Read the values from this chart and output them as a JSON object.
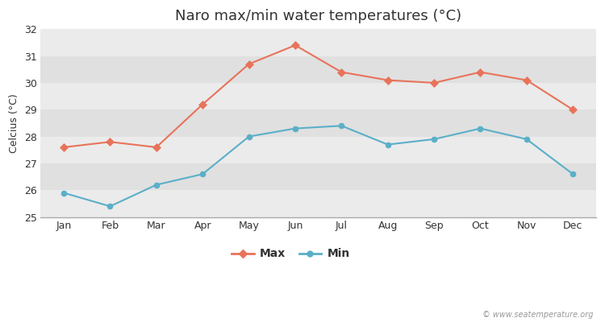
{
  "title": "Naro max/min water temperatures (°C)",
  "ylabel": "Celcius (°C)",
  "months": [
    "Jan",
    "Feb",
    "Mar",
    "Apr",
    "May",
    "Jun",
    "Jul",
    "Aug",
    "Sep",
    "Oct",
    "Nov",
    "Dec"
  ],
  "max_values": [
    27.6,
    27.8,
    27.6,
    29.2,
    30.7,
    31.4,
    30.4,
    30.1,
    30.0,
    30.4,
    30.1,
    29.0
  ],
  "min_values": [
    25.9,
    25.4,
    26.2,
    26.6,
    28.0,
    28.3,
    28.4,
    27.7,
    27.9,
    28.3,
    27.9,
    26.6
  ],
  "max_color": "#e8735a",
  "min_color": "#5aafc8",
  "ylim": [
    25,
    32
  ],
  "yticks": [
    25,
    26,
    27,
    28,
    29,
    30,
    31,
    32
  ],
  "band_colors": [
    "#ebebeb",
    "#e0e0e0"
  ],
  "fig_bg_color": "#ffffff",
  "watermark": "© www.seatemperature.org",
  "title_fontsize": 13,
  "label_fontsize": 9,
  "tick_fontsize": 9,
  "legend_fontsize": 10
}
